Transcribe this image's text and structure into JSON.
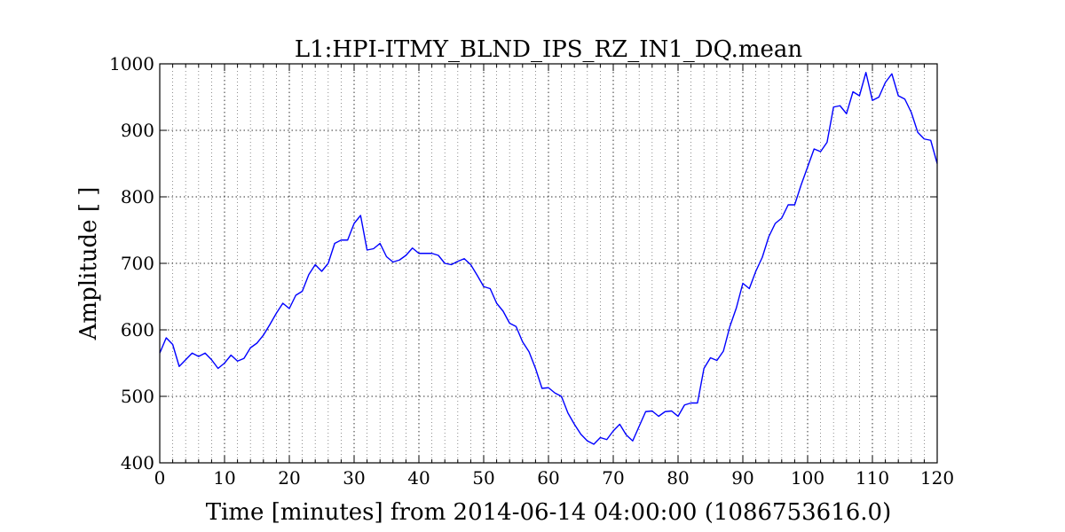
{
  "chart_data": {
    "type": "line",
    "title": "L1:HPI-ITMY_BLND_IPS_RZ_IN1_DQ.mean",
    "xlabel": "Time [minutes] from 2014-06-14 04:00:00 (1086753616.0)",
    "ylabel": "Amplitude [ ]",
    "xlim": [
      0,
      120
    ],
    "ylim": [
      400,
      1000
    ],
    "x_ticks": [
      0,
      10,
      20,
      30,
      40,
      50,
      60,
      70,
      80,
      90,
      100,
      110,
      120
    ],
    "y_ticks": [
      400,
      500,
      600,
      700,
      800,
      900,
      1000
    ],
    "x_minor_step": 2,
    "y_major_grid_step": 100,
    "grid": true,
    "legend": "none",
    "line_color": "#0000ff",
    "series": [
      {
        "x": [
          0,
          1,
          2,
          3,
          4,
          5,
          6,
          7,
          8,
          9,
          10,
          11,
          12,
          13,
          14,
          15,
          16,
          17,
          18,
          19,
          20,
          21,
          22,
          23,
          24,
          25,
          26,
          27,
          28,
          29,
          30,
          31,
          32,
          33,
          34,
          35,
          36,
          37,
          38,
          39,
          40,
          41,
          42,
          43,
          44,
          45,
          46,
          47,
          48,
          49,
          50,
          51,
          52,
          53,
          54,
          55,
          56,
          57,
          58,
          59,
          60,
          61,
          62,
          63,
          64,
          65,
          66,
          67,
          68,
          69,
          70,
          71,
          72,
          73,
          74,
          75,
          76,
          77,
          78,
          79,
          80,
          81,
          82,
          83,
          84,
          85,
          86,
          87,
          88,
          89,
          90,
          91,
          92,
          93,
          94,
          95,
          96,
          97,
          98,
          99,
          100,
          101,
          102,
          103,
          104,
          105,
          106,
          107,
          108,
          109,
          110,
          111,
          112,
          113,
          114,
          115,
          116,
          117,
          118,
          119,
          120
        ],
        "values": [
          565,
          588,
          578,
          545,
          555,
          565,
          560,
          565,
          555,
          542,
          550,
          562,
          553,
          557,
          573,
          580,
          592,
          608,
          625,
          640,
          632,
          652,
          658,
          683,
          698,
          688,
          700,
          730,
          735,
          735,
          760,
          772,
          720,
          722,
          730,
          710,
          702,
          705,
          712,
          723,
          715,
          715,
          715,
          712,
          700,
          698,
          703,
          707,
          698,
          682,
          665,
          662,
          640,
          628,
          610,
          605,
          582,
          567,
          542,
          512,
          513,
          505,
          500,
          475,
          458,
          443,
          433,
          428,
          438,
          435,
          448,
          458,
          442,
          433,
          455,
          477,
          478,
          470,
          477,
          478,
          470,
          487,
          490,
          490,
          542,
          558,
          554,
          568,
          605,
          633,
          670,
          662,
          688,
          709,
          740,
          760,
          768,
          788,
          788,
          818,
          845,
          872,
          868,
          882,
          935,
          937,
          925,
          958,
          952,
          987,
          945,
          950,
          972,
          985,
          952,
          947,
          927,
          897,
          887,
          885,
          850
        ]
      }
    ]
  }
}
